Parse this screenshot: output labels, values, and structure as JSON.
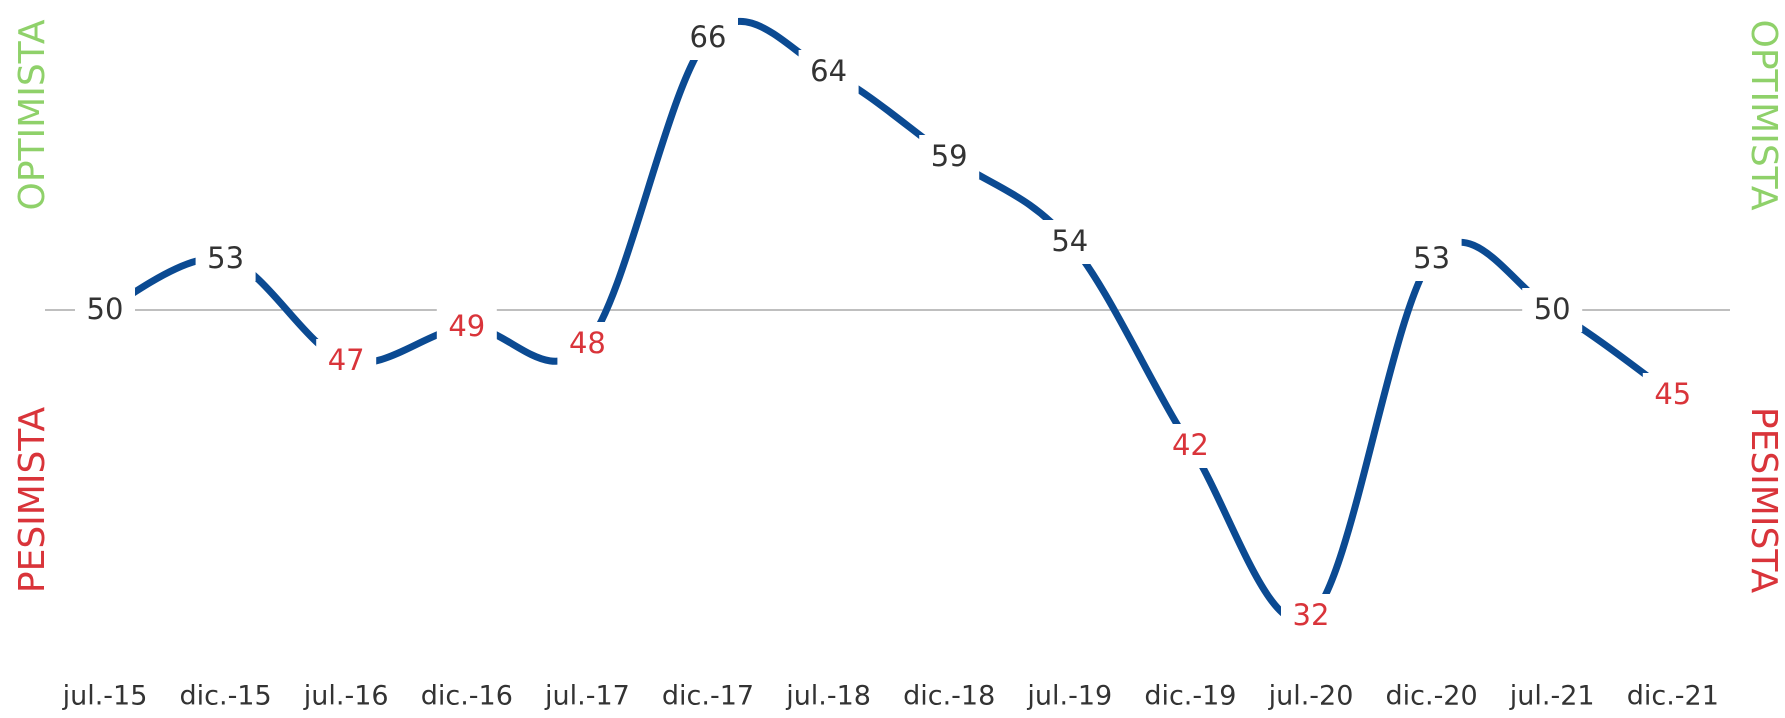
{
  "chart_data": {
    "type": "line",
    "categories": [
      "jul.-15",
      "dic.-15",
      "jul.-16",
      "dic.-16",
      "jul.-17",
      "dic.-17",
      "jul.-18",
      "dic.-18",
      "jul.-19",
      "dic.-19",
      "jul.-20",
      "dic.-20",
      "jul.-21",
      "dic.-21"
    ],
    "values": [
      50,
      53,
      47,
      49,
      48,
      66,
      64,
      59,
      54,
      42,
      32,
      53,
      50,
      45
    ],
    "color": "#0b4a92",
    "baseline": 50,
    "label_colors": {
      "above": "#333333",
      "below": "#d9343a"
    },
    "optimistic_label": "OPTIMISTA",
    "optimistic_color": "#8fd16a",
    "pessimistic_label": "PESIMISTA",
    "pessimistic_color": "#d9343a"
  }
}
